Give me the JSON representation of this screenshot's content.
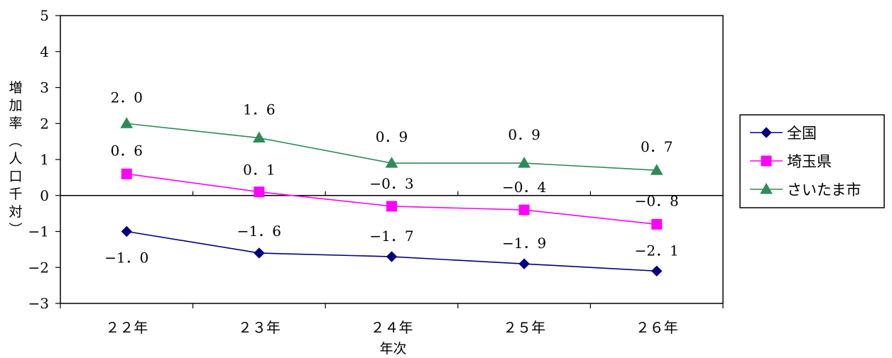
{
  "chart_data": {
    "type": "line",
    "categories": [
      "２２年",
      "２３年",
      "２４年",
      "２５年",
      "２６年"
    ],
    "xlabel": "年次",
    "ylabel_chars": [
      "増",
      "加",
      "率",
      "︵",
      "人",
      "口",
      "千",
      "対",
      "︶"
    ],
    "ylim": [
      -3,
      5
    ],
    "yticks": [
      5,
      4,
      3,
      2,
      1,
      0,
      -1,
      -2,
      -3
    ],
    "ytick_labels": [
      "5",
      "4",
      "3",
      "2",
      "1",
      "0",
      "−1",
      "−2",
      "−3"
    ],
    "grid": false,
    "legend_position": "right",
    "series": [
      {
        "name": "全国",
        "color": "#000080",
        "marker": "diamond",
        "values": [
          -1.0,
          -1.6,
          -1.7,
          -1.9,
          -2.1
        ],
        "labels": [
          "−1．0",
          "−1．6",
          "−1．7",
          "−1．9",
          "−2．1"
        ]
      },
      {
        "name": "埼玉県",
        "color": "#ff00ff",
        "marker": "square",
        "values": [
          0.6,
          0.1,
          -0.3,
          -0.4,
          -0.8
        ],
        "labels": [
          "0．6",
          "0．1",
          "−0．3",
          "−0．4",
          "−0．8"
        ]
      },
      {
        "name": "さいたま市",
        "color": "#2e8b57",
        "marker": "triangle",
        "values": [
          2.0,
          1.6,
          0.9,
          0.9,
          0.7
        ],
        "labels": [
          "2．0",
          "1．6",
          "0．9",
          "0．9",
          "0．7"
        ]
      }
    ]
  }
}
